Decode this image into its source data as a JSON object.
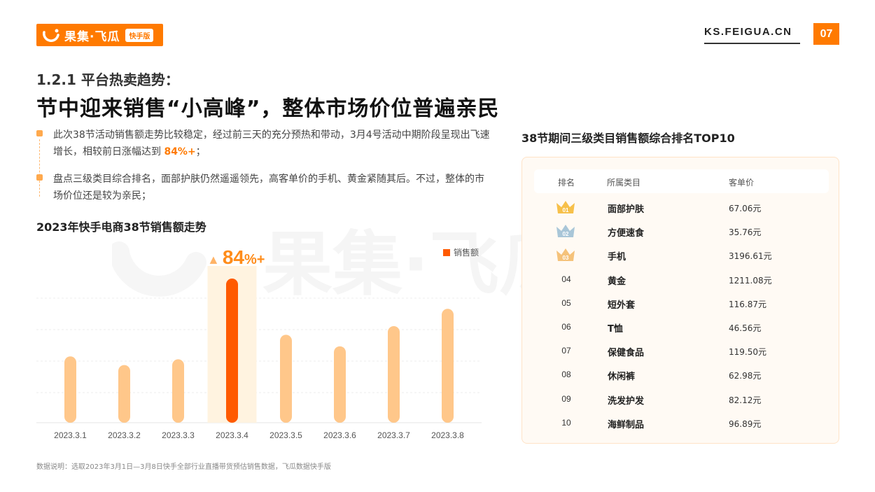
{
  "header": {
    "logo_text": "果集·飞瓜",
    "logo_badge": "快手版",
    "site": "KS.FEIGUA.CN",
    "page_number": "07",
    "brand_color": "#ff7a00"
  },
  "subtitle": "1.2.1 平台热卖趋势：",
  "title": "节中迎来销售“小高峰”，整体市场价位普遍亲民",
  "bullets": [
    {
      "text_before": "此次38节活动销售额走势比较稳定，经过前三天的充分预热和带动，3月4号活动中期阶段呈现出飞速增长，相较前日涨幅达到 ",
      "highlight": "84%+",
      "text_after": "；"
    },
    {
      "text_before": "盘点三级类目综合排名，面部护肤仍然遥遥领先，高客单价的手机、黄金紧随其后。不过，整体的市场价位还是较为亲民；",
      "highlight": "",
      "text_after": ""
    }
  ],
  "chart_title": "2023年快手电商38节销售额走势",
  "growth_label": {
    "value": "84",
    "unit": "%+"
  },
  "chart_data": {
    "type": "bar",
    "categories": [
      "2023.3.1",
      "2023.3.2",
      "2023.3.3",
      "2023.3.4",
      "2023.3.5",
      "2023.3.6",
      "2023.3.7",
      "2023.3.8"
    ],
    "series": [
      {
        "name": "销售额",
        "values": [
          46,
          40,
          44,
          100,
          61,
          53,
          67,
          79
        ]
      }
    ],
    "highlight_index": 3,
    "value_scale": "relative (no y-axis values shown)",
    "ylim": [
      0,
      100
    ],
    "grid": true,
    "legend": "top-right",
    "colors": {
      "normal": "#ffc78a",
      "highlight": "#ff5a00",
      "highlight_band": "#fff3e0"
    }
  },
  "table": {
    "title": "38节期间三级类目销售额综合排名TOP10",
    "headers": [
      "排名",
      "所属类目",
      "客单价"
    ],
    "rows": [
      {
        "rank": "01",
        "category": "面部护肤",
        "price": "67.06元",
        "crown": "gold"
      },
      {
        "rank": "02",
        "category": "方便速食",
        "price": "35.76元",
        "crown": "silver"
      },
      {
        "rank": "03",
        "category": "手机",
        "price": "3196.61元",
        "crown": "bronze"
      },
      {
        "rank": "04",
        "category": "黄金",
        "price": "1211.08元",
        "crown": ""
      },
      {
        "rank": "05",
        "category": "短外套",
        "price": "116.87元",
        "crown": ""
      },
      {
        "rank": "06",
        "category": "T恤",
        "price": "46.56元",
        "crown": ""
      },
      {
        "rank": "07",
        "category": "保健食品",
        "price": "119.50元",
        "crown": ""
      },
      {
        "rank": "08",
        "category": "休闲裤",
        "price": "62.98元",
        "crown": ""
      },
      {
        "rank": "09",
        "category": "洗发护发",
        "price": "82.12元",
        "crown": ""
      },
      {
        "rank": "10",
        "category": "海鲜制品",
        "price": "96.89元",
        "crown": ""
      }
    ],
    "crown_colors": {
      "gold": "#f7c04a",
      "silver": "#a9c6d8",
      "bronze": "#f5c27a"
    }
  },
  "watermark": {
    "text": "果集·飞瓜",
    "badge": "快手版"
  },
  "footnote": "数据说明：选取2023年3月1日—3月8日快手全部行业直播带货预估销售数据，飞瓜数据快手版"
}
